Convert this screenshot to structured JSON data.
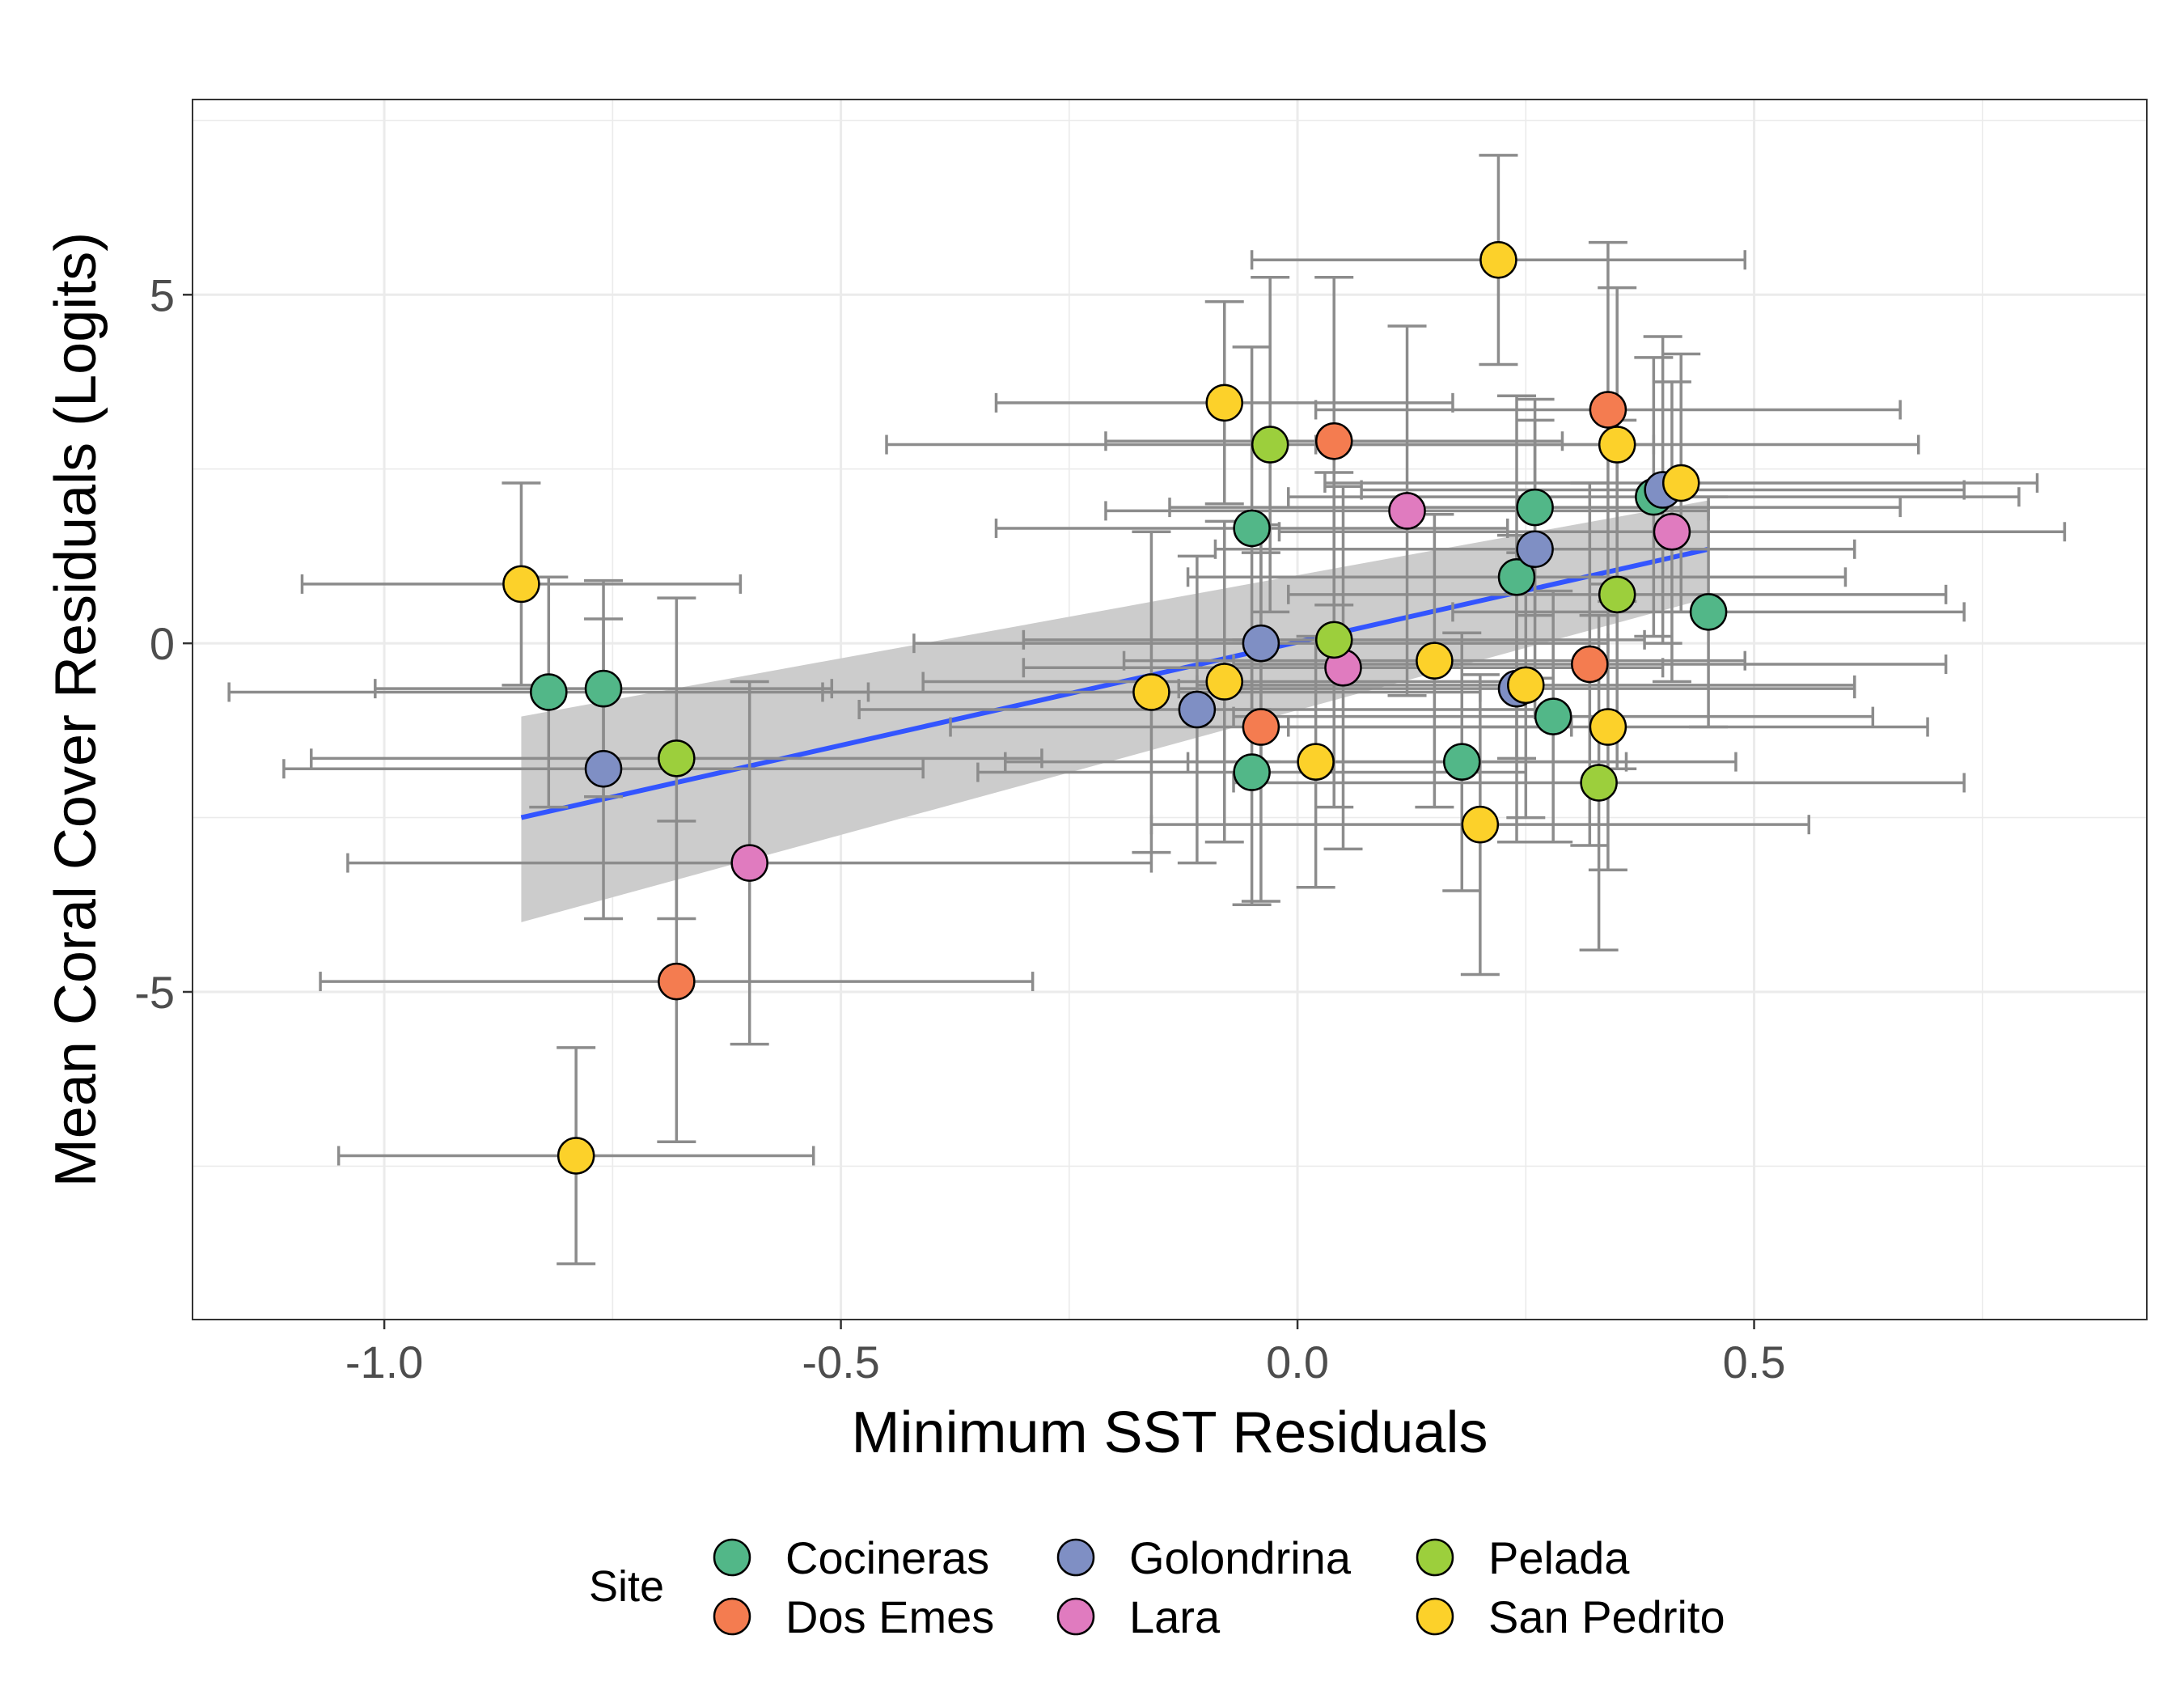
{
  "chart_data": {
    "type": "scatter",
    "title": "",
    "xlabel": "Minimum SST Residuals",
    "ylabel": "Mean Coral Cover Residuals (Logits)",
    "xlim": [
      -1.21,
      0.93
    ],
    "ylim": [
      -9.7,
      7.8
    ],
    "xticks": [
      -1.0,
      -0.5,
      0.0,
      0.5
    ],
    "xtick_labels": [
      "-1.0",
      "-0.5",
      "0.0",
      "0.5"
    ],
    "yticks": [
      -5,
      0,
      5
    ],
    "ytick_labels": [
      "-5",
      "0",
      "5"
    ],
    "grid": true,
    "error_bar_color": "#8c8c8c",
    "legend": {
      "title": "Site",
      "position": "bottom",
      "entries": [
        {
          "name": "Cocineras",
          "color": "#52b788"
        },
        {
          "name": "Dos Emes",
          "color": "#f47c50"
        },
        {
          "name": "Golondrina",
          "color": "#7f8fc4"
        },
        {
          "name": "Lara",
          "color": "#e07bbf"
        },
        {
          "name": "Pelada",
          "color": "#9ccf3c"
        },
        {
          "name": "San Pedrito",
          "color": "#fcd12a"
        }
      ]
    },
    "trend": {
      "x": [
        -0.85,
        0.45
      ],
      "y": [
        -2.5,
        1.35
      ],
      "band_lower": [
        -4.0,
        0.65
      ],
      "band_upper": [
        -1.05,
        2.05
      ],
      "line_color": "#3355ff",
      "band_color": "#cccccc"
    },
    "series": [
      {
        "name": "Cocineras",
        "points": [
          {
            "x": -0.82,
            "y": -0.7,
            "xerr": 0.35,
            "yerr": 1.65
          },
          {
            "x": -0.76,
            "y": -0.65,
            "xerr": 0.25,
            "yerr": 1.55
          },
          {
            "x": -0.05,
            "y": 1.65,
            "xerr": 0.28,
            "yerr": 2.6
          },
          {
            "x": -0.05,
            "y": -1.85,
            "xerr": 0.3,
            "yerr": 1.9
          },
          {
            "x": 0.18,
            "y": -1.7,
            "xerr": 0.3,
            "yerr": 1.85
          },
          {
            "x": 0.24,
            "y": 0.95,
            "xerr": 0.36,
            "yerr": 2.6
          },
          {
            "x": 0.26,
            "y": 1.95,
            "xerr": 0.4,
            "yerr": 1.55
          },
          {
            "x": 0.28,
            "y": -1.05,
            "xerr": 0.35,
            "yerr": 1.8
          },
          {
            "x": 0.39,
            "y": 2.1,
            "xerr": 0.4,
            "yerr": 2.0
          },
          {
            "x": 0.45,
            "y": 0.45,
            "xerr": 0.28,
            "yerr": 1.65
          }
        ]
      },
      {
        "name": "Dos Emes",
        "points": [
          {
            "x": -0.68,
            "y": -4.85,
            "xerr": 0.39,
            "yerr": 2.3
          },
          {
            "x": -0.04,
            "y": -1.2,
            "xerr": 0.34,
            "yerr": 2.5
          },
          {
            "x": 0.04,
            "y": 2.9,
            "xerr": 0.25,
            "yerr": 2.35
          },
          {
            "x": 0.32,
            "y": -0.3,
            "xerr": 0.39,
            "yerr": 2.6
          },
          {
            "x": 0.34,
            "y": 3.35,
            "xerr": 0.32,
            "yerr": 2.4
          }
        ]
      },
      {
        "name": "Golondrina",
        "points": [
          {
            "x": -0.76,
            "y": -1.8,
            "xerr": 0.35,
            "yerr": 2.15
          },
          {
            "x": -0.11,
            "y": -0.95,
            "xerr": 0.37,
            "yerr": 2.2
          },
          {
            "x": -0.04,
            "y": 0.0,
            "xerr": 0.38,
            "yerr": 1.7
          },
          {
            "x": 0.24,
            "y": -0.65,
            "xerr": 0.37,
            "yerr": 2.2
          },
          {
            "x": 0.26,
            "y": 1.35,
            "xerr": 0.35,
            "yerr": 1.85
          },
          {
            "x": 0.4,
            "y": 2.2,
            "xerr": 0.33,
            "yerr": 2.2
          }
        ]
      },
      {
        "name": "Lara",
        "points": [
          {
            "x": -0.6,
            "y": -3.15,
            "xerr": 0.44,
            "yerr": 2.6
          },
          {
            "x": 0.05,
            "y": -0.35,
            "xerr": 0.35,
            "yerr": 2.6
          },
          {
            "x": 0.12,
            "y": 1.9,
            "xerr": 0.33,
            "yerr": 2.65
          },
          {
            "x": 0.41,
            "y": 1.6,
            "xerr": 0.43,
            "yerr": 2.15
          }
        ]
      },
      {
        "name": "Pelada",
        "points": [
          {
            "x": -0.68,
            "y": -1.65,
            "xerr": 0.4,
            "yerr": 2.3
          },
          {
            "x": -0.03,
            "y": 2.85,
            "xerr": 0.42,
            "yerr": 2.4
          },
          {
            "x": 0.04,
            "y": 0.05,
            "xerr": 0.34,
            "yerr": 2.4
          },
          {
            "x": 0.33,
            "y": -2.0,
            "xerr": 0.4,
            "yerr": 2.4
          },
          {
            "x": 0.35,
            "y": 0.7,
            "xerr": 0.36,
            "yerr": 2.5
          }
        ]
      },
      {
        "name": "San Pedrito",
        "points": [
          {
            "x": -0.85,
            "y": 0.85,
            "xerr": 0.24,
            "yerr": 1.45
          },
          {
            "x": -0.79,
            "y": -7.35,
            "xerr": 0.26,
            "yerr": 1.55
          },
          {
            "x": -0.16,
            "y": -0.7,
            "xerr": 0.36,
            "yerr": 2.3
          },
          {
            "x": -0.08,
            "y": 3.45,
            "xerr": 0.25,
            "yerr": 1.45
          },
          {
            "x": -0.08,
            "y": -0.55,
            "xerr": 0.33,
            "yerr": 2.3
          },
          {
            "x": 0.02,
            "y": -1.7,
            "xerr": 0.34,
            "yerr": 1.8
          },
          {
            "x": 0.15,
            "y": -0.25,
            "xerr": 0.34,
            "yerr": 2.1
          },
          {
            "x": 0.2,
            "y": -2.6,
            "xerr": 0.36,
            "yerr": 2.15
          },
          {
            "x": 0.22,
            "y": 5.5,
            "xerr": 0.27,
            "yerr": 1.5
          },
          {
            "x": 0.25,
            "y": -0.6,
            "xerr": 0.36,
            "yerr": 1.9
          },
          {
            "x": 0.34,
            "y": -1.2,
            "xerr": 0.35,
            "yerr": 2.05
          },
          {
            "x": 0.35,
            "y": 2.85,
            "xerr": 0.33,
            "yerr": 2.25
          },
          {
            "x": 0.42,
            "y": 2.3,
            "xerr": 0.39,
            "yerr": 1.85
          }
        ]
      }
    ]
  }
}
